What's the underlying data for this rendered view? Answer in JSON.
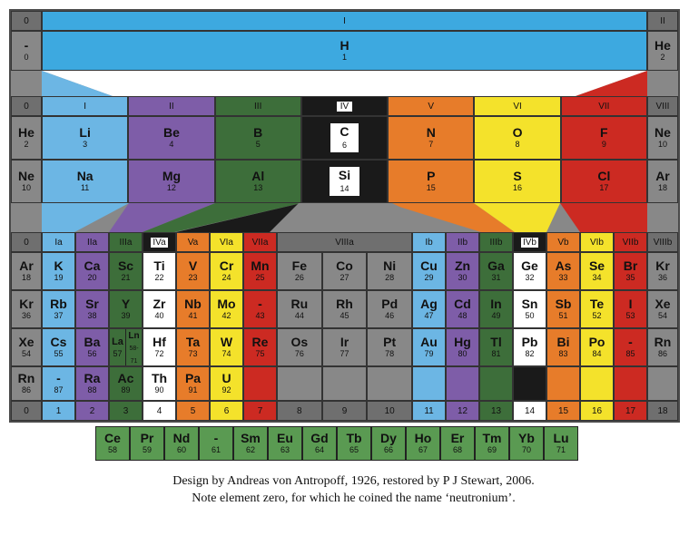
{
  "colors": {
    "grey": "#888888",
    "dark_grey": "#6f6f6f",
    "lt_blue": "#6cb6e4",
    "cyan": "#3da9e0",
    "purple": "#7e5da8",
    "dark_green": "#3d6e3a",
    "black": "#1a1a1a",
    "white": "#ffffff",
    "orange": "#e77c2a",
    "yellow": "#f4e22b",
    "red": "#cc2a22",
    "mid_green": "#5a9a52"
  },
  "caption_line1": "Design by Andreas von Antropoff, 1926, restored by P J Stewart, 2006.",
  "caption_line2": "Note element zero, for which he coined the name ‘neutronium’.",
  "header_top": {
    "left0": "0",
    "roman_I": "I",
    "rightII": "II"
  },
  "row1": {
    "dash": "-",
    "zero": "0",
    "H": "H",
    "H_num": "1",
    "He": "He",
    "He_num": "2"
  },
  "header_mid": {
    "c0": "0",
    "I": "I",
    "II": "II",
    "III": "III",
    "IV": "IV",
    "V": "V",
    "VI": "VI",
    "VII": "VII",
    "VIII": "VIII"
  },
  "row2": {
    "He": "He",
    "He_num": "2",
    "Li": "Li",
    "Li_num": "3",
    "Be": "Be",
    "Be_num": "4",
    "B": "B",
    "B_num": "5",
    "C": "C",
    "C_num": "6",
    "N": "N",
    "N_num": "7",
    "O": "O",
    "O_num": "8",
    "F": "F",
    "F_num": "9",
    "Ne": "Ne",
    "Ne_num": "10"
  },
  "row3": {
    "Ne": "Ne",
    "Ne_num": "10",
    "Na": "Na",
    "Na_num": "11",
    "Mg": "Mg",
    "Mg_num": "12",
    "Al": "Al",
    "Al_num": "13",
    "Si": "Si",
    "Si_num": "14",
    "P": "P",
    "P_num": "15",
    "S": "S",
    "S_num": "16",
    "Cl": "Cl",
    "Cl_num": "17",
    "Ar": "Ar",
    "Ar_num": "18"
  },
  "header_sub": {
    "c0": "0",
    "Ia": "Ia",
    "IIa": "IIa",
    "IIIa": "IIIa",
    "IVa": "IVa",
    "Va": "Va",
    "VIa": "VIa",
    "VIIa": "VIIa",
    "VIIIa": "VIIIa",
    "Ib": "Ib",
    "IIb": "IIb",
    "IIIb": "IIIb",
    "IVb": "IVb",
    "Vb": "Vb",
    "VIb": "VIb",
    "VIIb": "VIIb",
    "VIIIb": "VIIIb"
  },
  "row4": {
    "Ar": "Ar",
    "Ar_n": "18",
    "K": "K",
    "K_n": "19",
    "Ca": "Ca",
    "Ca_n": "20",
    "Sc": "Sc",
    "Sc_n": "21",
    "Ti": "Ti",
    "Ti_n": "22",
    "V": "V",
    "V_n": "23",
    "Cr": "Cr",
    "Cr_n": "24",
    "Mn": "Mn",
    "Mn_n": "25",
    "Fe": "Fe",
    "Fe_n": "26",
    "Co": "Co",
    "Co_n": "27",
    "Ni": "Ni",
    "Ni_n": "28",
    "Cu": "Cu",
    "Cu_n": "29",
    "Zn": "Zn",
    "Zn_n": "30",
    "Ga": "Ga",
    "Ga_n": "31",
    "Ge": "Ge",
    "Ge_n": "32",
    "As": "As",
    "As_n": "33",
    "Se": "Se",
    "Se_n": "34",
    "Br": "Br",
    "Br_n": "35",
    "Kr": "Kr",
    "Kr_n": "36"
  },
  "row5": {
    "Kr": "Kr",
    "Kr_n": "36",
    "Rb": "Rb",
    "Rb_n": "37",
    "Sr": "Sr",
    "Sr_n": "38",
    "Y": "Y",
    "Y_n": "39",
    "Zr": "Zr",
    "Zr_n": "40",
    "Nb": "Nb",
    "Nb_n": "41",
    "Mo": "Mo",
    "Mo_n": "42",
    "d43": "-",
    "d43_n": "43",
    "Ru": "Ru",
    "Ru_n": "44",
    "Rh": "Rh",
    "Rh_n": "45",
    "Pd": "Pd",
    "Pd_n": "46",
    "Ag": "Ag",
    "Ag_n": "47",
    "Cd": "Cd",
    "Cd_n": "48",
    "In": "In",
    "In_n": "49",
    "Sn": "Sn",
    "Sn_n": "50",
    "Sb": "Sb",
    "Sb_n": "51",
    "Te": "Te",
    "Te_n": "52",
    "I": "I",
    "I_n": "53",
    "Xe": "Xe",
    "Xe_n": "54"
  },
  "row6": {
    "Xe": "Xe",
    "Xe_n": "54",
    "Cs": "Cs",
    "Cs_n": "55",
    "Ba": "Ba",
    "Ba_n": "56",
    "La": "La",
    "La_n": "57",
    "Ln": "Ln",
    "Ln_n": "58-71",
    "Hf": "Hf",
    "Hf_n": "72",
    "Ta": "Ta",
    "Ta_n": "73",
    "W": "W",
    "W_n": "74",
    "Re": "Re",
    "Re_n": "75",
    "Os": "Os",
    "Os_n": "76",
    "Ir": "Ir",
    "Ir_n": "77",
    "Pt": "Pt",
    "Pt_n": "78",
    "Au": "Au",
    "Au_n": "79",
    "Hg": "Hg",
    "Hg_n": "80",
    "Tl": "Tl",
    "Tl_n": "81",
    "Pb": "Pb",
    "Pb_n": "82",
    "Bi": "Bi",
    "Bi_n": "83",
    "Po": "Po",
    "Po_n": "84",
    "d85": "-",
    "d85_n": "85",
    "Rn": "Rn",
    "Rn_n": "86"
  },
  "row7": {
    "Rn": "Rn",
    "Rn_n": "86",
    "d87": "-",
    "d87_n": "87",
    "Ra": "Ra",
    "Ra_n": "88",
    "Ac": "Ac",
    "Ac_n": "89",
    "Th": "Th",
    "Th_n": "90",
    "Pa": "Pa",
    "Pa_n": "91",
    "U": "U",
    "U_n": "92"
  },
  "footer": {
    "c0": "0",
    "c1": "1",
    "c2": "2",
    "c3": "3",
    "c4": "4",
    "c5": "5",
    "c6": "6",
    "c7": "7",
    "c8": "8",
    "c9": "9",
    "c10": "10",
    "c11": "11",
    "c12": "12",
    "c13": "13",
    "c14": "14",
    "c15": "15",
    "c16": "16",
    "c17": "17",
    "c18": "18"
  },
  "lanthanides": [
    {
      "sym": "Ce",
      "n": "58"
    },
    {
      "sym": "Pr",
      "n": "59"
    },
    {
      "sym": "Nd",
      "n": "60"
    },
    {
      "sym": "-",
      "n": "61"
    },
    {
      "sym": "Sm",
      "n": "62"
    },
    {
      "sym": "Eu",
      "n": "63"
    },
    {
      "sym": "Gd",
      "n": "64"
    },
    {
      "sym": "Tb",
      "n": "65"
    },
    {
      "sym": "Dy",
      "n": "66"
    },
    {
      "sym": "Ho",
      "n": "67"
    },
    {
      "sym": "Er",
      "n": "68"
    },
    {
      "sym": "Tm",
      "n": "69"
    },
    {
      "sym": "Yb",
      "n": "70"
    },
    {
      "sym": "Lu",
      "n": "71"
    }
  ]
}
